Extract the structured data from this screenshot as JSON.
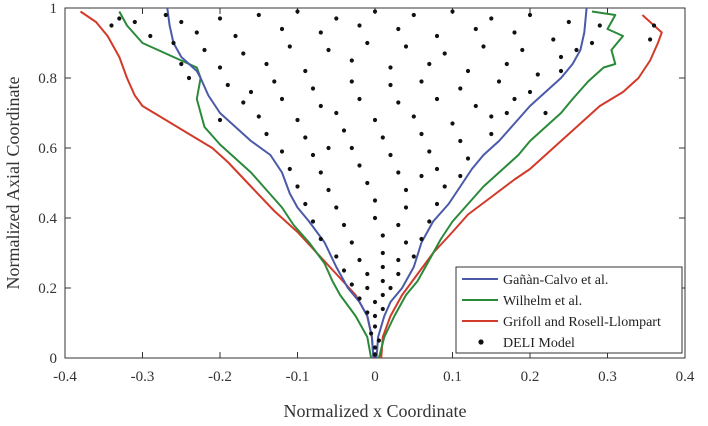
{
  "chart_data": {
    "type": "line",
    "title": "",
    "xlabel": "Normalized x Coordinate",
    "ylabel": "Normalized Axial Coordinate",
    "xlim": [
      -0.4,
      0.4
    ],
    "ylim": [
      0,
      1
    ],
    "x_ticks": [
      "-0.4",
      "-0.3",
      "-0.2",
      "-0.1",
      "0",
      "0.1",
      "0.2",
      "0.3",
      "0.4"
    ],
    "y_ticks": [
      "0",
      "0.2",
      "0.4",
      "0.6",
      "0.8",
      "1"
    ],
    "grid": false,
    "legend_position": "bottom-right",
    "series": [
      {
        "name": "Gañàn-Calvo et al.",
        "color": "#4a5aa8",
        "left": [
          [
            -0.002,
            0.0
          ],
          [
            -0.004,
            0.06
          ],
          [
            -0.01,
            0.12
          ],
          [
            -0.02,
            0.16
          ],
          [
            -0.035,
            0.2
          ],
          [
            -0.05,
            0.26
          ],
          [
            -0.065,
            0.33
          ],
          [
            -0.085,
            0.39
          ],
          [
            -0.1,
            0.43
          ],
          [
            -0.11,
            0.47
          ],
          [
            -0.12,
            0.53
          ],
          [
            -0.135,
            0.58
          ],
          [
            -0.16,
            0.62
          ],
          [
            -0.18,
            0.66
          ],
          [
            -0.2,
            0.7
          ],
          [
            -0.215,
            0.75
          ],
          [
            -0.225,
            0.8
          ],
          [
            -0.23,
            0.82
          ],
          [
            -0.25,
            0.86
          ],
          [
            -0.26,
            0.9
          ],
          [
            -0.265,
            0.95
          ],
          [
            -0.268,
            1.0
          ]
        ],
        "right": [
          [
            0.002,
            0.0
          ],
          [
            0.004,
            0.06
          ],
          [
            0.012,
            0.12
          ],
          [
            0.02,
            0.16
          ],
          [
            0.035,
            0.2
          ],
          [
            0.05,
            0.26
          ],
          [
            0.06,
            0.33
          ],
          [
            0.075,
            0.39
          ],
          [
            0.095,
            0.44
          ],
          [
            0.11,
            0.49
          ],
          [
            0.125,
            0.54
          ],
          [
            0.14,
            0.58
          ],
          [
            0.16,
            0.62
          ],
          [
            0.18,
            0.67
          ],
          [
            0.2,
            0.72
          ],
          [
            0.22,
            0.76
          ],
          [
            0.24,
            0.8
          ],
          [
            0.255,
            0.84
          ],
          [
            0.265,
            0.88
          ],
          [
            0.27,
            0.93
          ],
          [
            0.273,
            1.0
          ]
        ]
      },
      {
        "name": "Wilhelm et al.",
        "color": "#2a8a3a",
        "left": [
          [
            -0.005,
            0.0
          ],
          [
            -0.01,
            0.06
          ],
          [
            -0.025,
            0.12
          ],
          [
            -0.045,
            0.18
          ],
          [
            -0.055,
            0.22
          ],
          [
            -0.065,
            0.27
          ],
          [
            -0.085,
            0.33
          ],
          [
            -0.105,
            0.38
          ],
          [
            -0.12,
            0.43
          ],
          [
            -0.14,
            0.48
          ],
          [
            -0.16,
            0.53
          ],
          [
            -0.18,
            0.57
          ],
          [
            -0.2,
            0.61
          ],
          [
            -0.22,
            0.66
          ],
          [
            -0.23,
            0.74
          ],
          [
            -0.225,
            0.8
          ],
          [
            -0.23,
            0.83
          ],
          [
            -0.26,
            0.86
          ],
          [
            -0.3,
            0.9
          ],
          [
            -0.32,
            0.95
          ],
          [
            -0.33,
            0.99
          ]
        ],
        "right": [
          [
            0.005,
            0.0
          ],
          [
            0.012,
            0.06
          ],
          [
            0.025,
            0.12
          ],
          [
            0.04,
            0.18
          ],
          [
            0.055,
            0.22
          ],
          [
            0.07,
            0.28
          ],
          [
            0.085,
            0.34
          ],
          [
            0.1,
            0.39
          ],
          [
            0.12,
            0.44
          ],
          [
            0.14,
            0.49
          ],
          [
            0.165,
            0.54
          ],
          [
            0.185,
            0.58
          ],
          [
            0.2,
            0.62
          ],
          [
            0.22,
            0.66
          ],
          [
            0.24,
            0.7
          ],
          [
            0.255,
            0.74
          ],
          [
            0.275,
            0.79
          ],
          [
            0.295,
            0.83
          ],
          [
            0.31,
            0.84
          ],
          [
            0.305,
            0.88
          ],
          [
            0.32,
            0.92
          ],
          [
            0.3,
            0.94
          ],
          [
            0.31,
            0.98
          ],
          [
            0.28,
            0.99
          ]
        ]
      },
      {
        "name": "Grifoll and Rosell-Llompart",
        "color": "#d23a2a",
        "left": [
          [
            -0.002,
            0.0
          ],
          [
            -0.004,
            0.06
          ],
          [
            -0.01,
            0.12
          ],
          [
            -0.025,
            0.18
          ],
          [
            -0.05,
            0.24
          ],
          [
            -0.075,
            0.3
          ],
          [
            -0.1,
            0.36
          ],
          [
            -0.13,
            0.42
          ],
          [
            -0.16,
            0.49
          ],
          [
            -0.19,
            0.56
          ],
          [
            -0.21,
            0.6
          ],
          [
            -0.24,
            0.64
          ],
          [
            -0.27,
            0.68
          ],
          [
            -0.3,
            0.72
          ],
          [
            -0.31,
            0.75
          ],
          [
            -0.32,
            0.8
          ],
          [
            -0.33,
            0.86
          ],
          [
            -0.345,
            0.92
          ],
          [
            -0.36,
            0.96
          ],
          [
            -0.38,
            0.99
          ]
        ],
        "right": [
          [
            0.008,
            0.0
          ],
          [
            0.01,
            0.06
          ],
          [
            0.02,
            0.12
          ],
          [
            0.035,
            0.18
          ],
          [
            0.055,
            0.24
          ],
          [
            0.075,
            0.3
          ],
          [
            0.1,
            0.36
          ],
          [
            0.12,
            0.41
          ],
          [
            0.15,
            0.46
          ],
          [
            0.18,
            0.51
          ],
          [
            0.2,
            0.54
          ],
          [
            0.22,
            0.58
          ],
          [
            0.245,
            0.63
          ],
          [
            0.27,
            0.68
          ],
          [
            0.29,
            0.72
          ],
          [
            0.32,
            0.76
          ],
          [
            0.34,
            0.8
          ],
          [
            0.355,
            0.85
          ],
          [
            0.365,
            0.9
          ],
          [
            0.37,
            0.93
          ],
          [
            0.345,
            0.98
          ]
        ]
      },
      {
        "name": "DELI Model",
        "color": "#111111",
        "kind": "scatter",
        "points": [
          [
            -0.27,
            0.98
          ],
          [
            -0.25,
            0.96
          ],
          [
            -0.2,
            0.97
          ],
          [
            -0.15,
            0.98
          ],
          [
            -0.1,
            0.99
          ],
          [
            -0.05,
            0.97
          ],
          [
            0.0,
            0.99
          ],
          [
            0.05,
            0.98
          ],
          [
            0.1,
            0.99
          ],
          [
            0.15,
            0.97
          ],
          [
            0.2,
            0.98
          ],
          [
            0.25,
            0.96
          ],
          [
            -0.23,
            0.93
          ],
          [
            -0.18,
            0.92
          ],
          [
            -0.12,
            0.94
          ],
          [
            -0.07,
            0.93
          ],
          [
            -0.02,
            0.95
          ],
          [
            0.03,
            0.94
          ],
          [
            0.08,
            0.92
          ],
          [
            0.13,
            0.94
          ],
          [
            0.18,
            0.93
          ],
          [
            0.23,
            0.91
          ],
          [
            -0.31,
            0.96
          ],
          [
            -0.22,
            0.88
          ],
          [
            -0.17,
            0.87
          ],
          [
            -0.11,
            0.89
          ],
          [
            -0.06,
            0.88
          ],
          [
            -0.01,
            0.9
          ],
          [
            0.04,
            0.89
          ],
          [
            0.09,
            0.87
          ],
          [
            0.14,
            0.89
          ],
          [
            0.19,
            0.88
          ],
          [
            0.24,
            0.86
          ],
          [
            -0.2,
            0.83
          ],
          [
            -0.14,
            0.84
          ],
          [
            -0.09,
            0.82
          ],
          [
            -0.03,
            0.85
          ],
          [
            0.02,
            0.83
          ],
          [
            0.07,
            0.84
          ],
          [
            0.12,
            0.82
          ],
          [
            0.17,
            0.84
          ],
          [
            0.21,
            0.81
          ],
          [
            -0.19,
            0.78
          ],
          [
            -0.13,
            0.79
          ],
          [
            -0.08,
            0.77
          ],
          [
            -0.03,
            0.79
          ],
          [
            0.02,
            0.78
          ],
          [
            0.06,
            0.79
          ],
          [
            0.11,
            0.77
          ],
          [
            0.16,
            0.79
          ],
          [
            0.2,
            0.76
          ],
          [
            -0.17,
            0.73
          ],
          [
            -0.12,
            0.74
          ],
          [
            -0.07,
            0.72
          ],
          [
            -0.02,
            0.74
          ],
          [
            0.03,
            0.73
          ],
          [
            0.08,
            0.74
          ],
          [
            0.13,
            0.72
          ],
          [
            0.18,
            0.74
          ],
          [
            -0.15,
            0.69
          ],
          [
            -0.1,
            0.68
          ],
          [
            -0.05,
            0.7
          ],
          [
            0.0,
            0.68
          ],
          [
            0.05,
            0.69
          ],
          [
            0.1,
            0.67
          ],
          [
            0.15,
            0.69
          ],
          [
            -0.14,
            0.64
          ],
          [
            -0.09,
            0.63
          ],
          [
            -0.04,
            0.65
          ],
          [
            0.01,
            0.63
          ],
          [
            0.06,
            0.64
          ],
          [
            0.11,
            0.62
          ],
          [
            0.15,
            0.64
          ],
          [
            -0.12,
            0.59
          ],
          [
            -0.08,
            0.58
          ],
          [
            -0.03,
            0.6
          ],
          [
            0.02,
            0.58
          ],
          [
            0.07,
            0.59
          ],
          [
            0.12,
            0.57
          ],
          [
            -0.11,
            0.54
          ],
          [
            -0.07,
            0.53
          ],
          [
            -0.02,
            0.55
          ],
          [
            0.03,
            0.53
          ],
          [
            0.08,
            0.54
          ],
          [
            0.11,
            0.52
          ],
          [
            -0.1,
            0.49
          ],
          [
            -0.06,
            0.48
          ],
          [
            -0.01,
            0.5
          ],
          [
            0.04,
            0.48
          ],
          [
            0.09,
            0.49
          ],
          [
            -0.09,
            0.44
          ],
          [
            -0.05,
            0.43
          ],
          [
            0.0,
            0.45
          ],
          [
            0.04,
            0.43
          ],
          [
            0.08,
            0.44
          ],
          [
            -0.08,
            0.39
          ],
          [
            -0.04,
            0.38
          ],
          [
            0.0,
            0.4
          ],
          [
            0.03,
            0.38
          ],
          [
            0.07,
            0.39
          ],
          [
            -0.07,
            0.34
          ],
          [
            -0.03,
            0.33
          ],
          [
            0.01,
            0.35
          ],
          [
            0.04,
            0.33
          ],
          [
            0.06,
            0.34
          ],
          [
            -0.05,
            0.29
          ],
          [
            -0.02,
            0.28
          ],
          [
            0.01,
            0.3
          ],
          [
            0.03,
            0.28
          ],
          [
            0.05,
            0.29
          ],
          [
            -0.04,
            0.25
          ],
          [
            -0.01,
            0.24
          ],
          [
            0.01,
            0.26
          ],
          [
            0.03,
            0.24
          ],
          [
            -0.03,
            0.21
          ],
          [
            -0.01,
            0.2
          ],
          [
            0.01,
            0.22
          ],
          [
            0.02,
            0.2
          ],
          [
            -0.02,
            0.17
          ],
          [
            0.0,
            0.16
          ],
          [
            0.01,
            0.18
          ],
          [
            -0.01,
            0.13
          ],
          [
            0.0,
            0.12
          ],
          [
            0.01,
            0.14
          ],
          [
            0.0,
            0.09
          ],
          [
            -0.005,
            0.07
          ],
          [
            0.005,
            0.05
          ],
          [
            0.0,
            0.03
          ],
          [
            0.0,
            0.01
          ],
          [
            -0.29,
            0.92
          ],
          [
            -0.24,
            0.8
          ],
          [
            -0.26,
            0.9
          ],
          [
            0.26,
            0.88
          ],
          [
            0.28,
            0.9
          ],
          [
            0.29,
            0.95
          ],
          [
            0.36,
            0.95
          ],
          [
            0.355,
            0.91
          ],
          [
            -0.34,
            0.95
          ],
          [
            -0.33,
            0.97
          ],
          [
            -0.06,
            0.6
          ],
          [
            0.06,
            0.52
          ],
          [
            -0.16,
            0.76
          ],
          [
            0.17,
            0.7
          ],
          [
            -0.2,
            0.68
          ],
          [
            0.22,
            0.7
          ],
          [
            -0.25,
            0.84
          ],
          [
            0.24,
            0.82
          ]
        ]
      }
    ]
  }
}
